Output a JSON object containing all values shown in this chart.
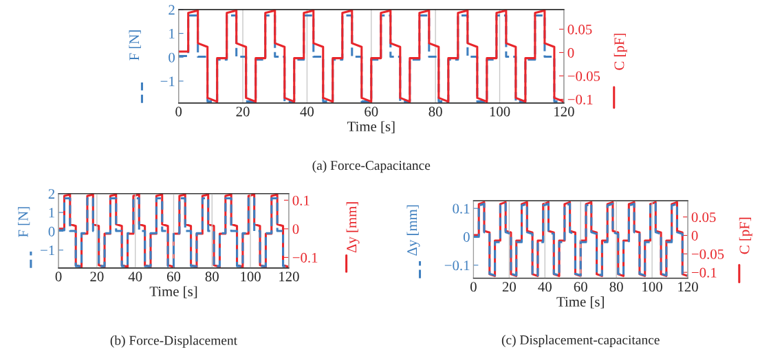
{
  "chart_data": [
    {
      "type": "line",
      "annotations": [
        "(a) Force-Capacitance"
      ],
      "xlabel": "Time [s]",
      "ylabel": "F [N]",
      "y2label": "C [pF]",
      "x": [
        0,
        3,
        3,
        6,
        6,
        9,
        9,
        12,
        12,
        15,
        15,
        18,
        18,
        21,
        21,
        24,
        24,
        27,
        27,
        30,
        30,
        33,
        33,
        36,
        36,
        39,
        39,
        42,
        42,
        45,
        45,
        48,
        48,
        51,
        51,
        54,
        54,
        57,
        57,
        60,
        60,
        63,
        63,
        66,
        66,
        69,
        69,
        72,
        72,
        75,
        75,
        78,
        78,
        81,
        81,
        84,
        84,
        87,
        87,
        90,
        90,
        93,
        93,
        96,
        96,
        99,
        99,
        102,
        102,
        105,
        105,
        108,
        108,
        111,
        111,
        114,
        114,
        117,
        117,
        120
      ],
      "series": [
        {
          "color": "#3f7fbf",
          "line_style": "dashed",
          "axis": "y",
          "values": [
            0.05,
            0.05,
            1.75,
            1.75,
            0.02,
            0.02,
            -1.85,
            -1.85,
            -0.1,
            -0.1,
            1.75,
            1.75,
            0.02,
            0.02,
            -1.85,
            -1.85,
            -0.1,
            -0.1,
            1.75,
            1.75,
            0.02,
            0.02,
            -1.85,
            -1.85,
            -0.1,
            -0.1,
            1.75,
            1.75,
            0.02,
            0.02,
            -1.85,
            -1.85,
            -0.1,
            -0.1,
            1.75,
            1.75,
            0.02,
            0.02,
            -1.85,
            -1.85,
            -0.1,
            -0.1,
            1.75,
            1.75,
            0.02,
            0.02,
            -1.85,
            -1.85,
            -0.1,
            -0.1,
            1.75,
            1.75,
            0.02,
            0.02,
            -1.85,
            -1.85,
            -0.1,
            -0.1,
            1.75,
            1.75,
            0.02,
            0.02,
            -1.85,
            -1.85,
            -0.1,
            -0.1,
            1.75,
            1.75,
            0.02,
            0.02,
            -1.85,
            -1.85,
            -0.1,
            -0.1,
            1.75,
            1.75,
            0.02,
            0.02,
            -1.85,
            -1.85
          ]
        },
        {
          "color": "#e8262b",
          "line_style": "solid",
          "axis": "y2",
          "values": [
            0.002,
            0.002,
            0.085,
            0.09,
            0.02,
            0.012,
            -0.097,
            -0.105,
            -0.012,
            -0.012,
            0.085,
            0.09,
            0.02,
            0.012,
            -0.097,
            -0.105,
            -0.012,
            -0.012,
            0.085,
            0.09,
            0.02,
            0.012,
            -0.097,
            -0.105,
            -0.012,
            -0.012,
            0.085,
            0.09,
            0.02,
            0.012,
            -0.097,
            -0.105,
            -0.012,
            -0.012,
            0.085,
            0.09,
            0.02,
            0.012,
            -0.097,
            -0.105,
            -0.012,
            -0.012,
            0.085,
            0.09,
            0.02,
            0.012,
            -0.097,
            -0.105,
            -0.012,
            -0.012,
            0.085,
            0.09,
            0.02,
            0.012,
            -0.097,
            -0.105,
            -0.012,
            -0.012,
            0.085,
            0.09,
            0.02,
            0.012,
            -0.097,
            -0.105,
            -0.012,
            -0.012,
            0.085,
            0.09,
            0.02,
            0.012,
            -0.097,
            -0.105,
            -0.012,
            -0.012,
            0.085,
            0.09,
            0.02,
            0.012,
            -0.097,
            -0.105
          ]
        }
      ],
      "xlim": [
        0,
        120
      ],
      "xticks": [
        0,
        20,
        40,
        60,
        80,
        100,
        120
      ],
      "ylim": [
        -1.92,
        2
      ],
      "yticks": [
        -1,
        0,
        1,
        2
      ],
      "y2lim": [
        -0.108,
        0.092
      ],
      "y2ticks": [
        -0.1,
        -0.05,
        0,
        0.05
      ],
      "grid": "x"
    },
    {
      "type": "line",
      "annotations": [
        "(b) Force-Displacement"
      ],
      "xlabel": "Time [s]",
      "ylabel": "F [N]",
      "y2label": "Δy [mm]",
      "x": [
        0,
        3,
        3,
        6,
        6,
        9,
        9,
        12,
        12,
        15,
        15,
        18,
        18,
        21,
        21,
        24,
        24,
        27,
        27,
        30,
        30,
        33,
        33,
        36,
        36,
        39,
        39,
        42,
        42,
        45,
        45,
        48,
        48,
        51,
        51,
        54,
        54,
        57,
        57,
        60,
        60,
        63,
        63,
        66,
        66,
        69,
        69,
        72,
        72,
        75,
        75,
        78,
        78,
        81,
        81,
        84,
        84,
        87,
        87,
        90,
        90,
        93,
        93,
        96,
        96,
        99,
        99,
        102,
        102,
        105,
        105,
        108,
        108,
        111,
        111,
        114,
        114,
        117,
        117,
        120
      ],
      "series": [
        {
          "color": "#e8262b",
          "line_style": "solid",
          "axis": "y2",
          "values": [
            0,
            0,
            0.115,
            0.12,
            0.016,
            0.01,
            -0.127,
            -0.133,
            -0.017,
            -0.017,
            0.115,
            0.12,
            0.016,
            0.01,
            -0.127,
            -0.133,
            -0.017,
            -0.017,
            0.115,
            0.12,
            0.016,
            0.01,
            -0.127,
            -0.133,
            -0.017,
            -0.017,
            0.115,
            0.12,
            0.016,
            0.01,
            -0.127,
            -0.133,
            -0.017,
            -0.017,
            0.115,
            0.12,
            0.016,
            0.01,
            -0.127,
            -0.133,
            -0.017,
            -0.017,
            0.115,
            0.12,
            0.016,
            0.01,
            -0.127,
            -0.133,
            -0.017,
            -0.017,
            0.115,
            0.12,
            0.016,
            0.01,
            -0.127,
            -0.133,
            -0.017,
            -0.017,
            0.115,
            0.12,
            0.016,
            0.01,
            -0.127,
            -0.133,
            -0.017,
            -0.017,
            0.115,
            0.12,
            0.016,
            0.01,
            -0.127,
            -0.133,
            -0.017,
            -0.017,
            0.115,
            0.12,
            0.016,
            0.01,
            -0.127,
            -0.133
          ]
        },
        {
          "color": "#3f7fbf",
          "line_style": "dashed",
          "axis": "y",
          "values": [
            0.05,
            0.05,
            1.75,
            1.75,
            0.02,
            0.02,
            -1.85,
            -1.85,
            -0.1,
            -0.1,
            1.75,
            1.75,
            0.02,
            0.02,
            -1.85,
            -1.85,
            -0.1,
            -0.1,
            1.75,
            1.75,
            0.02,
            0.02,
            -1.85,
            -1.85,
            -0.1,
            -0.1,
            1.75,
            1.75,
            0.02,
            0.02,
            -1.85,
            -1.85,
            -0.1,
            -0.1,
            1.75,
            1.75,
            0.02,
            0.02,
            -1.85,
            -1.85,
            -0.1,
            -0.1,
            1.75,
            1.75,
            0.02,
            0.02,
            -1.85,
            -1.85,
            -0.1,
            -0.1,
            1.75,
            1.75,
            0.02,
            0.02,
            -1.85,
            -1.85,
            -0.1,
            -0.1,
            1.75,
            1.75,
            0.02,
            0.02,
            -1.85,
            -1.85,
            -0.1,
            -0.1,
            1.75,
            1.75,
            0.02,
            0.02,
            -1.85,
            -1.85,
            -0.1,
            -0.1,
            1.75,
            1.75,
            0.02,
            0.02,
            -1.85,
            -1.85
          ]
        }
      ],
      "xlim": [
        0,
        120
      ],
      "xticks": [
        0,
        20,
        40,
        60,
        80,
        100,
        120
      ],
      "ylim": [
        -1.95,
        2
      ],
      "yticks": [
        -1,
        0,
        1,
        2
      ],
      "y2lim": [
        -0.137,
        0.123
      ],
      "y2ticks": [
        -0.1,
        0,
        0.1
      ],
      "grid": "x"
    },
    {
      "type": "line",
      "annotations": [
        "(c) Displacement-capacitance"
      ],
      "xlabel": "Time [s]",
      "ylabel": "Δy [mm]",
      "y2label": "C [pF]",
      "x": [
        0,
        3,
        3,
        6,
        6,
        9,
        9,
        12,
        12,
        15,
        15,
        18,
        18,
        21,
        21,
        24,
        24,
        27,
        27,
        30,
        30,
        33,
        33,
        36,
        36,
        39,
        39,
        42,
        42,
        45,
        45,
        48,
        48,
        51,
        51,
        54,
        54,
        57,
        57,
        60,
        60,
        63,
        63,
        66,
        66,
        69,
        69,
        72,
        72,
        75,
        75,
        78,
        78,
        81,
        81,
        84,
        84,
        87,
        87,
        90,
        90,
        93,
        93,
        96,
        96,
        99,
        99,
        102,
        102,
        105,
        105,
        108,
        108,
        111,
        111,
        114,
        114,
        117,
        117,
        120
      ],
      "series": [
        {
          "color": "#e8262b",
          "line_style": "solid",
          "axis": "y2",
          "values": [
            0.001,
            0.001,
            0.085,
            0.09,
            0.012,
            0.008,
            -0.105,
            -0.11,
            -0.014,
            -0.014,
            0.085,
            0.09,
            0.012,
            0.008,
            -0.105,
            -0.11,
            -0.014,
            -0.014,
            0.085,
            0.09,
            0.012,
            0.008,
            -0.105,
            -0.11,
            -0.014,
            -0.014,
            0.085,
            0.09,
            0.012,
            0.008,
            -0.105,
            -0.11,
            -0.014,
            -0.014,
            0.085,
            0.09,
            0.012,
            0.008,
            -0.105,
            -0.11,
            -0.014,
            -0.014,
            0.085,
            0.09,
            0.012,
            0.008,
            -0.105,
            -0.11,
            -0.014,
            -0.014,
            0.085,
            0.09,
            0.012,
            0.008,
            -0.105,
            -0.11,
            -0.014,
            -0.014,
            0.085,
            0.09,
            0.012,
            0.008,
            -0.105,
            -0.11,
            -0.014,
            -0.014,
            0.085,
            0.09,
            0.012,
            0.008,
            -0.105,
            -0.11,
            -0.014,
            -0.014,
            0.085,
            0.09,
            0.012,
            0.008,
            -0.105,
            -0.11
          ]
        },
        {
          "color": "#3f7fbf",
          "line_style": "dashed",
          "axis": "y",
          "values": [
            0,
            0,
            0.11,
            0.116,
            0.016,
            0.01,
            -0.13,
            -0.136,
            -0.019,
            -0.019,
            0.11,
            0.116,
            0.016,
            0.01,
            -0.13,
            -0.136,
            -0.019,
            -0.019,
            0.11,
            0.116,
            0.016,
            0.01,
            -0.13,
            -0.136,
            -0.019,
            -0.019,
            0.11,
            0.116,
            0.016,
            0.01,
            -0.13,
            -0.136,
            -0.019,
            -0.019,
            0.11,
            0.116,
            0.016,
            0.01,
            -0.13,
            -0.136,
            -0.019,
            -0.019,
            0.11,
            0.116,
            0.016,
            0.01,
            -0.13,
            -0.136,
            -0.019,
            -0.019,
            0.11,
            0.116,
            0.016,
            0.01,
            -0.13,
            -0.136,
            -0.019,
            -0.019,
            0.11,
            0.116,
            0.016,
            0.01,
            -0.13,
            -0.136,
            -0.019,
            -0.019,
            0.11,
            0.116,
            0.016,
            0.01,
            -0.13,
            -0.136,
            -0.019,
            -0.019,
            0.11,
            0.116,
            0.016,
            0.01,
            -0.13,
            -0.136
          ]
        }
      ],
      "xlim": [
        0,
        120
      ],
      "xticks": [
        0,
        20,
        40,
        60,
        80,
        100,
        120
      ],
      "ylim": [
        -0.146,
        0.127
      ],
      "yticks": [
        -0.1,
        0,
        0.1
      ],
      "y2lim": [
        -0.116,
        0.094
      ],
      "y2ticks": [
        -0.1,
        -0.05,
        0,
        0.05
      ],
      "grid": "x"
    }
  ]
}
